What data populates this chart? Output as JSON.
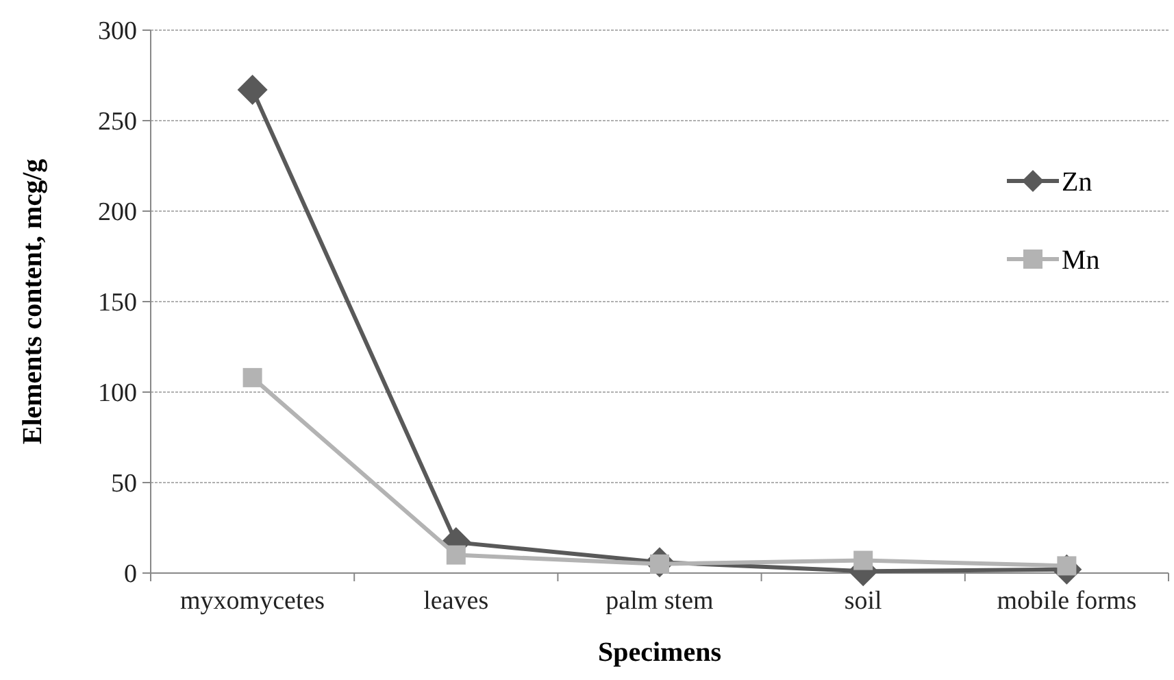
{
  "chart_data": {
    "type": "line",
    "xlabel": "Specimens",
    "ylabel": "Elements content, mcg/g",
    "categories": [
      "myxomycetes",
      "leaves",
      "palm stem",
      "soil",
      "mobile forms"
    ],
    "series": [
      {
        "name": "Zn",
        "color": "#595959",
        "values": [
          267,
          17,
          6,
          1,
          2
        ],
        "marker": "diamond"
      },
      {
        "name": "Mn",
        "color": "#b3b3b3",
        "values": [
          108,
          10,
          5,
          7,
          4
        ],
        "marker": "square"
      }
    ],
    "ylim": [
      0,
      300
    ],
    "yticks": [
      0,
      50,
      100,
      150,
      200,
      250,
      300
    ],
    "grid": "y",
    "legend": "top right"
  }
}
